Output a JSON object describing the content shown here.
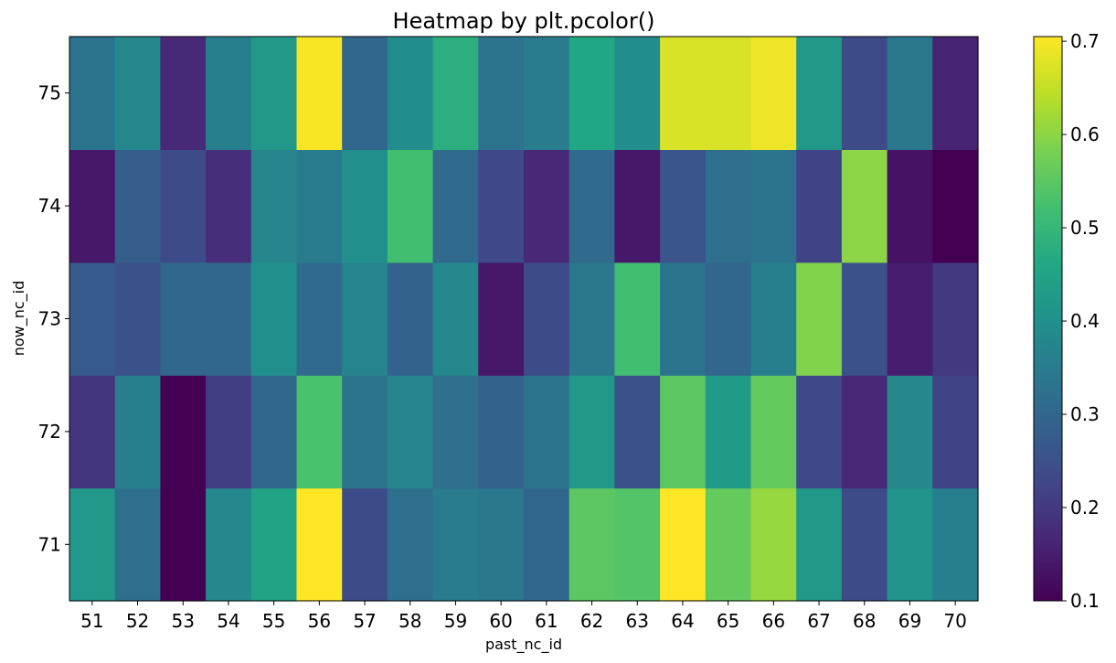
{
  "chart_data": {
    "type": "heatmap",
    "title": "Heatmap by plt.pcolor()",
    "xlabel": "past_nc_id",
    "ylabel": "now_nc_id",
    "x_categories": [
      "51",
      "52",
      "53",
      "54",
      "55",
      "56",
      "57",
      "58",
      "59",
      "60",
      "61",
      "62",
      "63",
      "64",
      "65",
      "66",
      "67",
      "68",
      "69",
      "70"
    ],
    "y_categories": [
      "71",
      "72",
      "73",
      "74",
      "75"
    ],
    "values": [
      [
        0.42,
        0.32,
        0.1,
        0.38,
        0.45,
        0.71,
        0.24,
        0.32,
        0.35,
        0.34,
        0.3,
        0.55,
        0.54,
        0.71,
        0.56,
        0.61,
        0.42,
        0.24,
        0.41,
        0.36
      ],
      [
        0.19,
        0.36,
        0.1,
        0.21,
        0.3,
        0.53,
        0.33,
        0.37,
        0.32,
        0.29,
        0.33,
        0.42,
        0.25,
        0.55,
        0.43,
        0.56,
        0.23,
        0.17,
        0.38,
        0.22
      ],
      [
        0.27,
        0.25,
        0.3,
        0.3,
        0.4,
        0.31,
        0.37,
        0.29,
        0.38,
        0.14,
        0.24,
        0.34,
        0.52,
        0.33,
        0.3,
        0.36,
        0.59,
        0.25,
        0.15,
        0.2
      ],
      [
        0.14,
        0.28,
        0.24,
        0.18,
        0.37,
        0.35,
        0.4,
        0.52,
        0.31,
        0.23,
        0.17,
        0.31,
        0.14,
        0.26,
        0.32,
        0.33,
        0.22,
        0.6,
        0.13,
        0.1
      ],
      [
        0.33,
        0.38,
        0.17,
        0.36,
        0.42,
        0.7,
        0.3,
        0.39,
        0.48,
        0.33,
        0.35,
        0.46,
        0.39,
        0.67,
        0.67,
        0.69,
        0.42,
        0.24,
        0.34,
        0.16
      ]
    ],
    "colormap": "viridis",
    "vmin": 0.1,
    "vmax": 0.705,
    "colorbar_ticks": [
      "0.1",
      "0.2",
      "0.3",
      "0.4",
      "0.5",
      "0.6",
      "0.7"
    ],
    "colorbar_tick_values": [
      0.1,
      0.2,
      0.3,
      0.4,
      0.5,
      0.6,
      0.7
    ],
    "colorbar": "right",
    "grid": false
  }
}
